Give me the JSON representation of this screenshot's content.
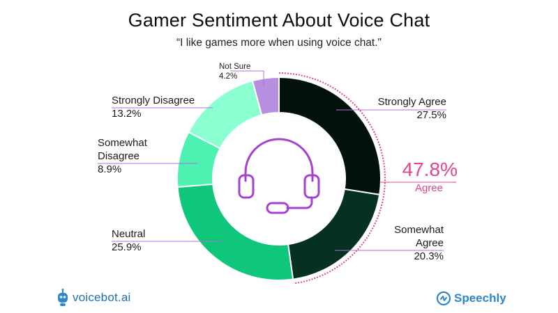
{
  "chart_data": {
    "type": "pie",
    "title": "Gamer Sentiment About Voice Chat",
    "subtitle": "“I like games more when using voice chat.\"",
    "slices": [
      {
        "label": "Strongly Agree",
        "value": 27.5,
        "value_label": "27.5%",
        "color": "#03110b"
      },
      {
        "label": "Somewhat Agree",
        "value": 20.3,
        "value_label": "20.3%",
        "color": "#06301f"
      },
      {
        "label": "Neutral",
        "value": 25.9,
        "value_label": "25.9%",
        "color": "#0fc77a"
      },
      {
        "label": "Somewhat Disagree",
        "value": 8.9,
        "value_label": "8.9%",
        "color": "#4df2b2"
      },
      {
        "label": "Strongly Disagree",
        "value": 13.2,
        "value_label": "13.2%",
        "color": "#8affd0"
      },
      {
        "label": "Not Sure",
        "value": 4.2,
        "value_label": "4.2%",
        "color": "#b88fe0"
      }
    ],
    "style": "donut",
    "annotation": {
      "value": "47.8%",
      "label": "Agree",
      "color": "#e0458f"
    }
  },
  "labels": {
    "strongly_agree_name": "Strongly Agree",
    "somewhat_agree_line1": "Somewhat",
    "somewhat_agree_line2": "Agree",
    "neutral_name": "Neutral",
    "somewhat_disagree_line1": "Somewhat",
    "somewhat_disagree_line2": "Disagree",
    "strongly_disagree_name": "Strongly Disagree",
    "not_sure_name": "Not Sure"
  },
  "center_icon": "headset-icon",
  "footer": {
    "left_logo_text": "voicebot.ai",
    "right_logo_text": "Speechly"
  }
}
